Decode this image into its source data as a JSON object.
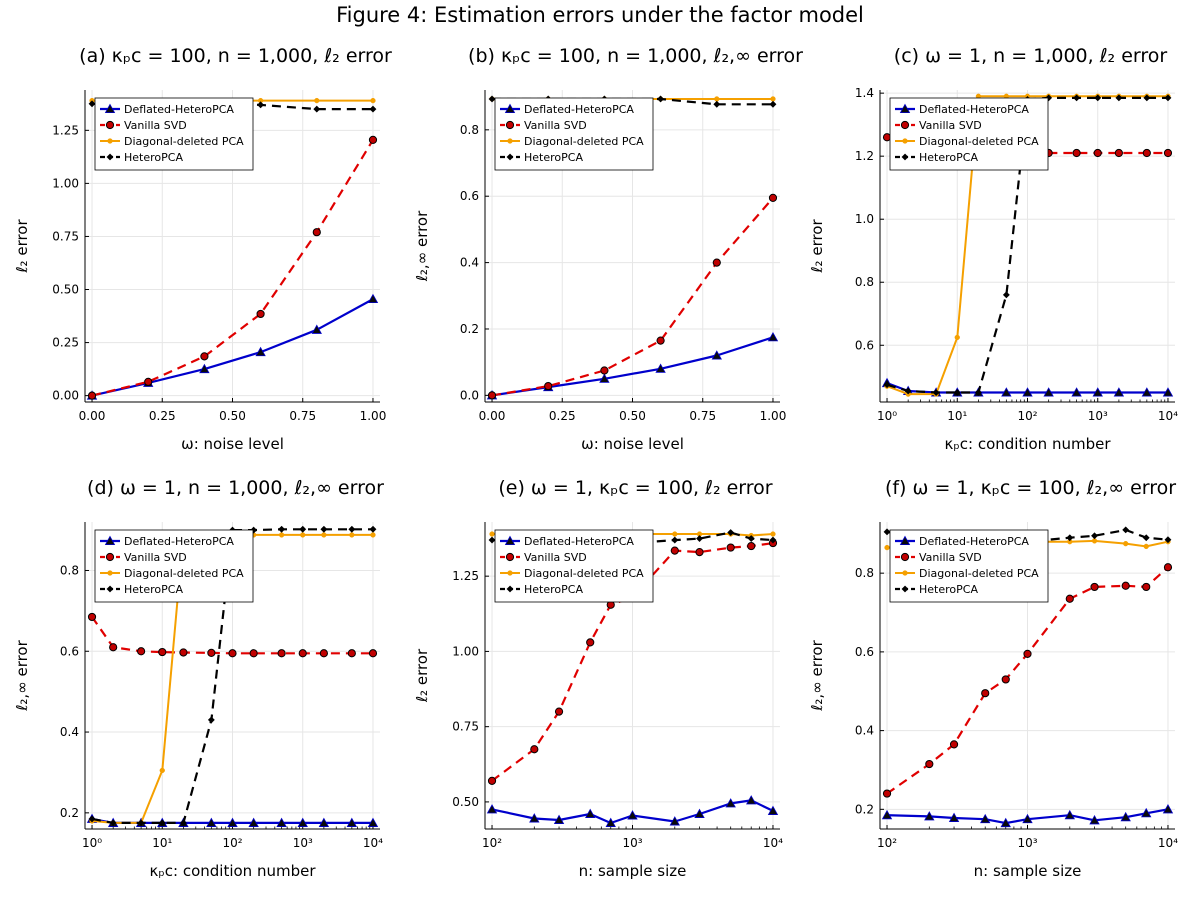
{
  "figure_title": "Figure 4: Estimation errors under the factor model",
  "colors": {
    "Deflated-HeteroPCA": "#0000cc",
    "Vanilla SVD": "#e00000",
    "Diagonal-deleted PCA": "#f5a000",
    "HeteroPCA": "#000000"
  },
  "legend": [
    "Deflated-HeteroPCA",
    "Vanilla SVD",
    "Diagonal-deleted PCA",
    "HeteroPCA"
  ],
  "chart_data": [
    {
      "type": "line",
      "title": "(a) κₚc = 100, n = 1,000, ℓ₂ error",
      "xlabel": "ω: noise level",
      "ylabel": "ℓ₂ error",
      "xscale": "linear",
      "xlim": [
        0,
        1
      ],
      "ylim": [
        -0.03,
        1.44
      ],
      "xticks": [
        0,
        0.25,
        0.5,
        0.75,
        1.0
      ],
      "xticklabels": [
        "0.00",
        "0.25",
        "0.50",
        "0.75",
        "1.00"
      ],
      "yticks": [
        0,
        0.25,
        0.5,
        0.75,
        1.0,
        1.25
      ],
      "yticklabels": [
        "0.00",
        "0.25",
        "0.50",
        "0.75",
        "1.00",
        "1.25"
      ],
      "legend_position": "top-left",
      "grid": true,
      "x": [
        0,
        0.2,
        0.4,
        0.6,
        0.8,
        1.0
      ],
      "series": [
        {
          "name": "Deflated-HeteroPCA",
          "values": [
            0.0,
            0.06,
            0.125,
            0.205,
            0.31,
            0.455
          ]
        },
        {
          "name": "Vanilla SVD",
          "values": [
            0.0,
            0.065,
            0.185,
            0.385,
            0.77,
            1.205
          ]
        },
        {
          "name": "Diagonal-deleted PCA",
          "values": [
            1.39,
            1.39,
            1.39,
            1.39,
            1.39,
            1.39
          ]
        },
        {
          "name": "HeteroPCA",
          "values": [
            1.375,
            1.375,
            1.375,
            1.37,
            1.35,
            1.35
          ]
        }
      ]
    },
    {
      "type": "line",
      "title": "(b) κₚc = 100, n = 1,000, ℓ₂,∞ error",
      "xlabel": "ω: noise level",
      "ylabel": "ℓ₂,∞ error",
      "xscale": "linear",
      "xlim": [
        0,
        1
      ],
      "ylim": [
        -0.02,
        0.92
      ],
      "xticks": [
        0,
        0.25,
        0.5,
        0.75,
        1.0
      ],
      "xticklabels": [
        "0.00",
        "0.25",
        "0.50",
        "0.75",
        "1.00"
      ],
      "yticks": [
        0,
        0.2,
        0.4,
        0.6,
        0.8
      ],
      "yticklabels": [
        "0.0",
        "0.2",
        "0.4",
        "0.6",
        "0.8"
      ],
      "legend_position": "top-left",
      "grid": true,
      "x": [
        0,
        0.2,
        0.4,
        0.6,
        0.8,
        1.0
      ],
      "series": [
        {
          "name": "Deflated-HeteroPCA",
          "values": [
            0.0,
            0.025,
            0.05,
            0.08,
            0.12,
            0.175
          ]
        },
        {
          "name": "Vanilla SVD",
          "values": [
            0.0,
            0.028,
            0.075,
            0.165,
            0.4,
            0.595
          ]
        },
        {
          "name": "Diagonal-deleted PCA",
          "values": [
            0.893,
            0.893,
            0.893,
            0.893,
            0.893,
            0.893
          ]
        },
        {
          "name": "HeteroPCA",
          "values": [
            0.893,
            0.893,
            0.893,
            0.893,
            0.877,
            0.877
          ]
        }
      ]
    },
    {
      "type": "line",
      "title": "(c) ω = 1, n = 1,000, ℓ₂ error",
      "xlabel": "κₚc: condition number",
      "ylabel": "ℓ₂ error",
      "xscale": "log",
      "xlim": [
        1,
        10000
      ],
      "ylim": [
        0.42,
        1.41
      ],
      "xticks": [
        1,
        10,
        100,
        1000,
        10000
      ],
      "xticklabels": [
        "10⁰",
        "10¹",
        "10²",
        "10³",
        "10⁴"
      ],
      "yticks": [
        0.6,
        0.8,
        1.0,
        1.2,
        1.4
      ],
      "yticklabels": [
        "0.6",
        "0.8",
        "1.0",
        "1.2",
        "1.4"
      ],
      "legend_position": "top-left",
      "grid": true,
      "x": [
        1,
        2,
        5,
        10,
        20,
        50,
        100,
        200,
        500,
        1000,
        2000,
        5000,
        10000
      ],
      "series": [
        {
          "name": "Deflated-HeteroPCA",
          "values": [
            0.48,
            0.455,
            0.45,
            0.45,
            0.45,
            0.45,
            0.45,
            0.45,
            0.45,
            0.45,
            0.45,
            0.45,
            0.45
          ]
        },
        {
          "name": "Vanilla SVD",
          "values": [
            1.26,
            1.22,
            1.21,
            1.21,
            1.21,
            1.21,
            1.21,
            1.21,
            1.21,
            1.21,
            1.21,
            1.21,
            1.21
          ]
        },
        {
          "name": "Diagonal-deleted PCA",
          "values": [
            0.47,
            0.445,
            0.445,
            0.625,
            1.39,
            1.39,
            1.39,
            1.39,
            1.39,
            1.39,
            1.39,
            1.39,
            1.39
          ]
        },
        {
          "name": "HeteroPCA",
          "values": [
            0.475,
            0.455,
            0.45,
            0.45,
            0.45,
            0.76,
            1.38,
            1.385,
            1.385,
            1.385,
            1.385,
            1.385,
            1.385
          ]
        }
      ]
    },
    {
      "type": "line",
      "title": "(d) ω = 1, n = 1,000, ℓ₂,∞ error",
      "xlabel": "κₚc: condition number",
      "ylabel": "ℓ₂,∞ error",
      "xscale": "log",
      "xlim": [
        1,
        10000
      ],
      "ylim": [
        0.16,
        0.92
      ],
      "xticks": [
        1,
        10,
        100,
        1000,
        10000
      ],
      "xticklabels": [
        "10⁰",
        "10¹",
        "10²",
        "10³",
        "10⁴"
      ],
      "yticks": [
        0.2,
        0.4,
        0.6,
        0.8
      ],
      "yticklabels": [
        "0.2",
        "0.4",
        "0.6",
        "0.8"
      ],
      "legend_position": "top-left",
      "grid": true,
      "x": [
        1,
        2,
        5,
        10,
        20,
        50,
        100,
        200,
        500,
        1000,
        2000,
        5000,
        10000
      ],
      "series": [
        {
          "name": "Deflated-HeteroPCA",
          "values": [
            0.185,
            0.175,
            0.175,
            0.175,
            0.175,
            0.175,
            0.175,
            0.175,
            0.175,
            0.175,
            0.175,
            0.175,
            0.175
          ]
        },
        {
          "name": "Vanilla SVD",
          "values": [
            0.685,
            0.61,
            0.6,
            0.598,
            0.597,
            0.596,
            0.595,
            0.595,
            0.595,
            0.595,
            0.595,
            0.595,
            0.595
          ]
        },
        {
          "name": "Diagonal-deleted PCA",
          "values": [
            0.18,
            0.175,
            0.175,
            0.305,
            0.89,
            0.89,
            0.89,
            0.888,
            0.888,
            0.888,
            0.888,
            0.888,
            0.888
          ]
        },
        {
          "name": "HeteroPCA",
          "values": [
            0.185,
            0.175,
            0.175,
            0.175,
            0.175,
            0.43,
            0.9,
            0.9,
            0.902,
            0.902,
            0.902,
            0.902,
            0.902
          ]
        }
      ]
    },
    {
      "type": "line",
      "title": "(e) ω = 1, κₚc = 100, ℓ₂ error",
      "xlabel": "n: sample size",
      "ylabel": "ℓ₂ error",
      "xscale": "log",
      "xlim": [
        100,
        10000
      ],
      "ylim": [
        0.41,
        1.43
      ],
      "xticks": [
        100,
        1000,
        10000
      ],
      "xticklabels": [
        "10²",
        "10³",
        "10⁴"
      ],
      "yticks": [
        0.5,
        0.75,
        1.0,
        1.25
      ],
      "yticklabels": [
        "0.50",
        "0.75",
        "1.00",
        "1.25"
      ],
      "legend_position": "top-left",
      "grid": true,
      "x": [
        100,
        200,
        300,
        500,
        700,
        1000,
        2000,
        3000,
        5000,
        7000,
        10000
      ],
      "series": [
        {
          "name": "Deflated-HeteroPCA",
          "values": [
            0.475,
            0.445,
            0.44,
            0.46,
            0.43,
            0.455,
            0.435,
            0.46,
            0.495,
            0.505,
            0.47
          ]
        },
        {
          "name": "Vanilla SVD",
          "values": [
            0.57,
            0.675,
            0.8,
            1.03,
            1.155,
            1.18,
            1.335,
            1.33,
            1.345,
            1.35,
            1.36
          ]
        },
        {
          "name": "Diagonal-deleted PCA",
          "values": [
            1.39,
            1.39,
            1.39,
            1.39,
            1.39,
            1.39,
            1.39,
            1.39,
            1.39,
            1.385,
            1.39
          ]
        },
        {
          "name": "HeteroPCA",
          "values": [
            1.37,
            1.37,
            1.37,
            1.36,
            1.36,
            1.36,
            1.37,
            1.375,
            1.395,
            1.375,
            1.37
          ]
        }
      ]
    },
    {
      "type": "line",
      "title": "(f) ω = 1, κₚc = 100, ℓ₂,∞ error",
      "xlabel": "n: sample size",
      "ylabel": "ℓ₂,∞ error",
      "xscale": "log",
      "xlim": [
        100,
        10000
      ],
      "ylim": [
        0.15,
        0.93
      ],
      "xticks": [
        100,
        1000,
        10000
      ],
      "xticklabels": [
        "10²",
        "10³",
        "10⁴"
      ],
      "yticks": [
        0.2,
        0.4,
        0.6,
        0.8
      ],
      "yticklabels": [
        "0.2",
        "0.4",
        "0.6",
        "0.8"
      ],
      "legend_position": "top-left",
      "grid": true,
      "x": [
        100,
        200,
        300,
        500,
        700,
        1000,
        2000,
        3000,
        5000,
        7000,
        10000
      ],
      "series": [
        {
          "name": "Deflated-HeteroPCA",
          "values": [
            0.185,
            0.182,
            0.178,
            0.175,
            0.165,
            0.175,
            0.185,
            0.172,
            0.18,
            0.19,
            0.2
          ]
        },
        {
          "name": "Vanilla SVD",
          "values": [
            0.24,
            0.315,
            0.365,
            0.495,
            0.53,
            0.595,
            0.735,
            0.765,
            0.768,
            0.765,
            0.815
          ]
        },
        {
          "name": "Diagonal-deleted PCA",
          "values": [
            0.865,
            0.87,
            0.875,
            0.878,
            0.88,
            0.88,
            0.88,
            0.882,
            0.875,
            0.868,
            0.88
          ]
        },
        {
          "name": "HeteroPCA",
          "values": [
            0.905,
            0.885,
            0.885,
            0.89,
            0.88,
            0.88,
            0.89,
            0.895,
            0.91,
            0.89,
            0.885
          ]
        }
      ]
    }
  ]
}
